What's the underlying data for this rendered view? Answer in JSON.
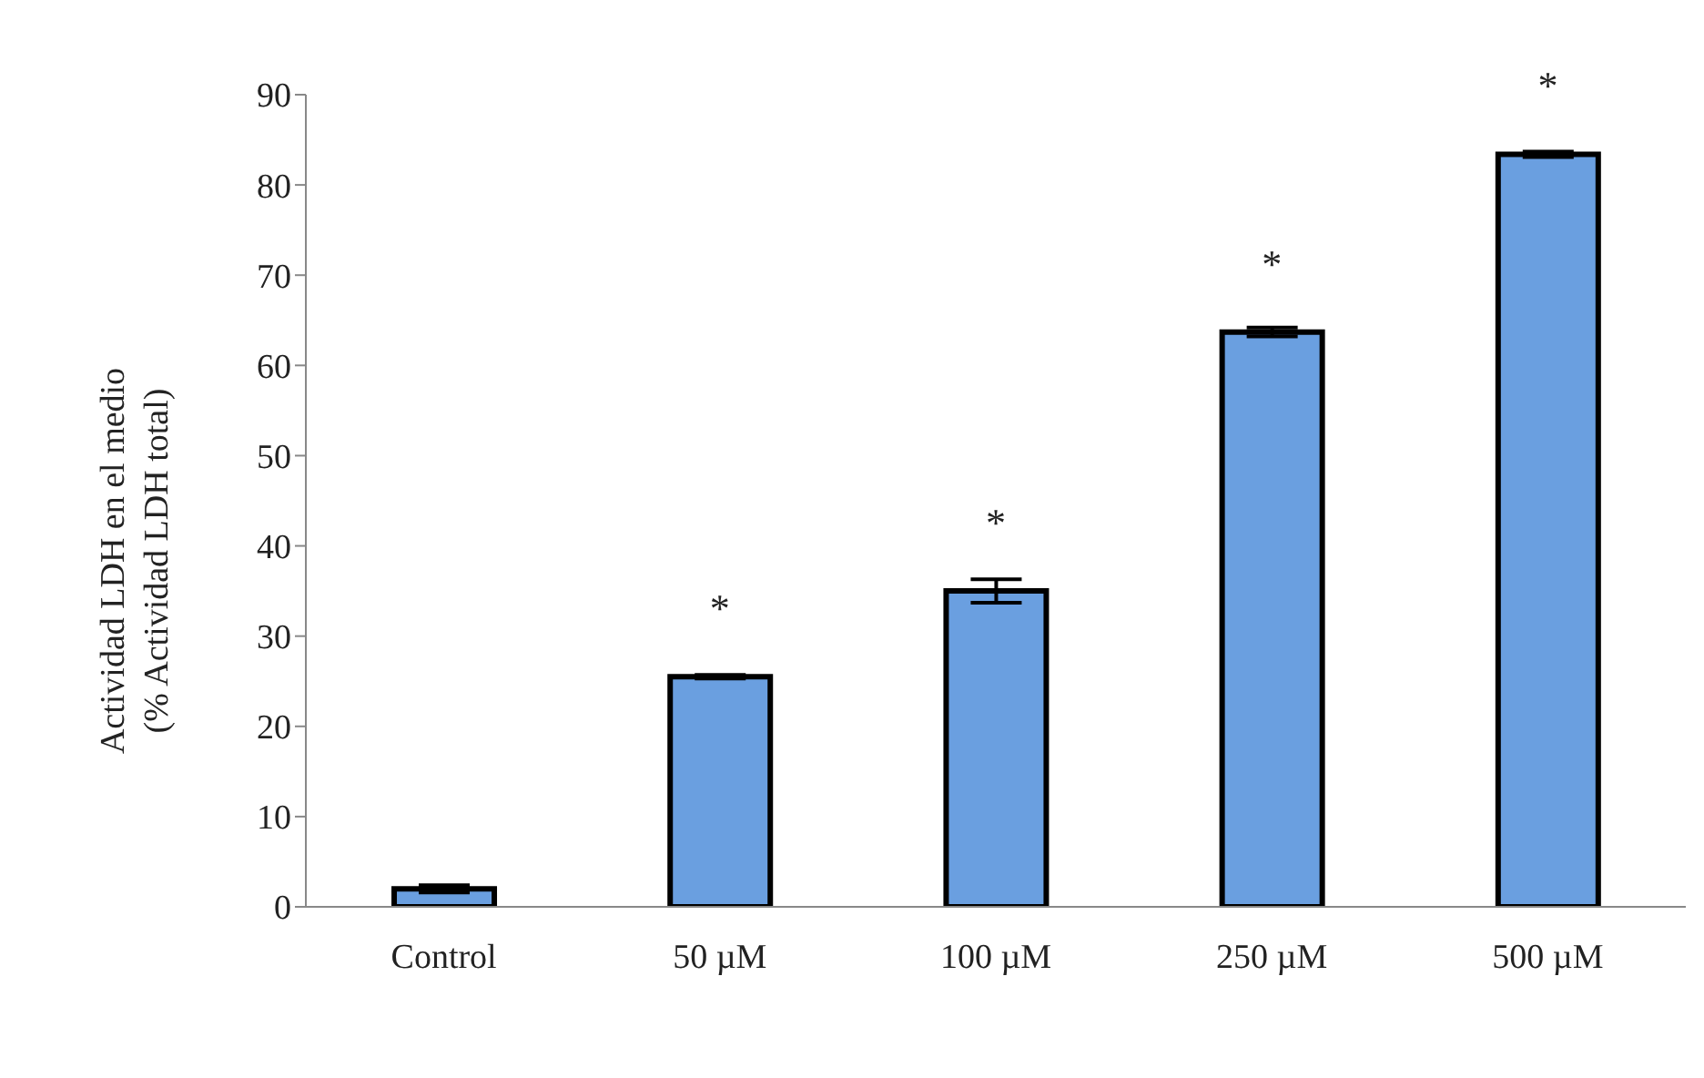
{
  "chart_data": {
    "type": "bar",
    "ylabel": "Actividad LDH en el medio\n(% Actividad LDH total)",
    "categories": [
      "Control",
      "50 µM",
      "100 µM",
      "250 µM",
      "500 µM"
    ],
    "values": [
      2,
      25.5,
      35,
      63.7,
      83.4
    ],
    "errors": [
      0.4,
      0.2,
      1.3,
      0.5,
      0.3
    ],
    "color": "#6a9fe0",
    "ylim": [
      0,
      90
    ],
    "yticks": [
      0,
      10,
      20,
      30,
      40,
      50,
      60,
      70,
      80,
      90
    ],
    "grid": false,
    "annotations": [
      {
        "text": "*",
        "x": "50 µM",
        "y": 25.5
      },
      {
        "text": "*",
        "x": "100 µM",
        "y": 35
      },
      {
        "text": "*",
        "x": "250 µM",
        "y": 63.7
      },
      {
        "text": "*",
        "x": "500 µM",
        "y": 83.4
      }
    ]
  }
}
